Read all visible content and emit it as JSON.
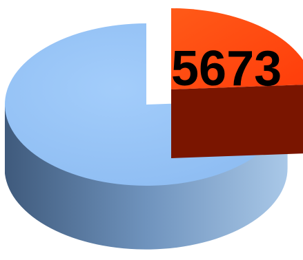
{
  "chart_data": {
    "type": "pie",
    "style": "3d-exploded",
    "slices": [
      {
        "value": 24,
        "label": "5673",
        "color": "#ff4a12",
        "side_color": "#c22a06",
        "exploded": true
      },
      {
        "value": 76,
        "label": "",
        "color": "#92c3f7",
        "side_color": "#587ca7",
        "exploded": false
      }
    ],
    "legend": "none"
  }
}
